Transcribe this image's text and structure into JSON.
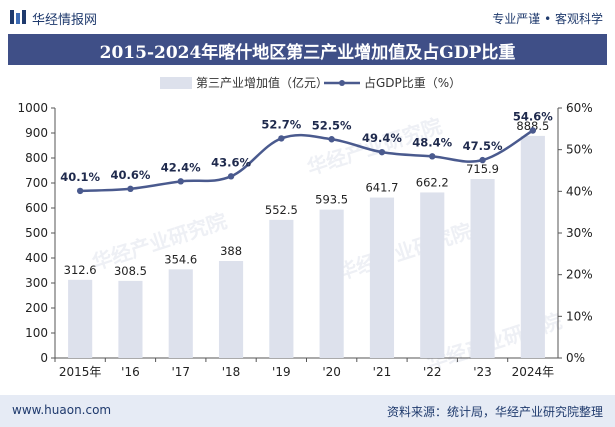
{
  "header": {
    "brand": "华经情报网",
    "slogan": "专业严谨 • 客观科学"
  },
  "title": "2015-2024年喀什地区第三产业增加值及占GDP比重",
  "footer": {
    "site": "www.huaon.com",
    "source": "资料来源：统计局，华经产业研究院整理"
  },
  "watermark": "华经产业研究院",
  "colors": {
    "bar": "#dde1ec",
    "line": "#4a5a8e",
    "title_bg": "#3f4f87",
    "footer_bg": "#e6ebf5"
  },
  "chart_data": {
    "type": "bar+line",
    "categories": [
      "2015年",
      "'16",
      "'17",
      "'18",
      "'19",
      "'20",
      "'21",
      "'22",
      "'23",
      "2024年"
    ],
    "series": [
      {
        "name": "第三产业增加值（亿元）",
        "type": "bar",
        "axis": "left",
        "values": [
          312.6,
          308.5,
          354.6,
          388,
          552.5,
          593.5,
          641.7,
          662.2,
          715.9,
          888.5
        ],
        "labels": [
          "312.6",
          "308.5",
          "354.6",
          "388",
          "552.5",
          "593.5",
          "641.7",
          "662.2",
          "715.9",
          "888.5"
        ]
      },
      {
        "name": "占GDP比重（%）",
        "type": "line",
        "axis": "right",
        "values": [
          40.1,
          40.6,
          42.4,
          43.6,
          52.7,
          52.5,
          49.4,
          48.4,
          47.5,
          54.6
        ],
        "labels": [
          "40.1%",
          "40.6%",
          "42.4%",
          "43.6%",
          "52.7%",
          "52.5%",
          "49.4%",
          "48.4%",
          "47.5%",
          "54.6%"
        ]
      }
    ],
    "y_left": {
      "min": 0,
      "max": 1000,
      "step": 100,
      "ticks": [
        "0",
        "100",
        "200",
        "300",
        "400",
        "500",
        "600",
        "700",
        "800",
        "900",
        "1000"
      ]
    },
    "y_right": {
      "min": 0,
      "max": 60,
      "step": 10,
      "ticks": [
        "0%",
        "10%",
        "20%",
        "30%",
        "40%",
        "50%",
        "60%"
      ]
    },
    "legend_position": "top-center",
    "grid": false
  }
}
